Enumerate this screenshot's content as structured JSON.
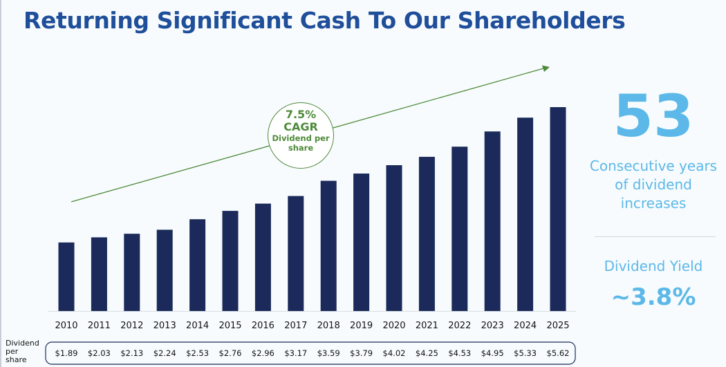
{
  "title": "Returning Significant Cash To Our Shareholders",
  "chart_data": {
    "type": "bar",
    "title": "Dividend per share",
    "categories": [
      "2010",
      "2011",
      "2012",
      "2013",
      "2014",
      "2015",
      "2016",
      "2017",
      "2018",
      "2019",
      "2020",
      "2021",
      "2022",
      "2023",
      "2024",
      "2025"
    ],
    "values": [
      1.89,
      2.03,
      2.13,
      2.24,
      2.53,
      2.76,
      2.96,
      3.17,
      3.59,
      3.79,
      4.02,
      4.25,
      4.53,
      4.95,
      5.33,
      5.62
    ],
    "value_labels": [
      "$1.89",
      "$2.03",
      "$2.13",
      "$2.24",
      "$2.53",
      "$2.76",
      "$2.96",
      "$3.17",
      "$3.59",
      "$3.79",
      "$4.02",
      "$4.25",
      "$4.53",
      "$4.95",
      "$5.33",
      "$5.62"
    ],
    "row_label": "Dividend per share",
    "ylim": [
      0,
      5.62
    ],
    "annotation": {
      "cagr_percent": "7.5%",
      "cagr_label": "CAGR",
      "cagr_sub": "Dividend per share"
    }
  },
  "side": {
    "big_number": "53",
    "big_caption": "Consecutive years of dividend increases",
    "yield_label": "Dividend Yield",
    "yield_value": "~3.8%"
  },
  "colors": {
    "bar": "#1b2a5a",
    "title": "#1f4e9a",
    "accent": "#5cb8e8",
    "trend": "#4e8a3a"
  }
}
